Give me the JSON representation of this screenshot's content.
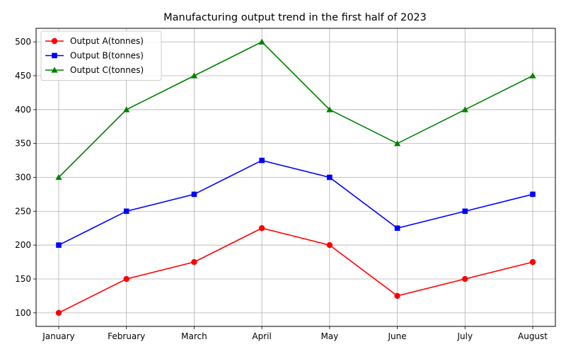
{
  "chart_data": {
    "type": "line",
    "title": "Manufacturing output trend in the first half of 2023",
    "xlabel": "",
    "ylabel": "",
    "categories": [
      "January",
      "February",
      "March",
      "April",
      "May",
      "June",
      "July",
      "August"
    ],
    "ylim": [
      80,
      520
    ],
    "yticks": [
      100,
      150,
      200,
      250,
      300,
      350,
      400,
      450,
      500
    ],
    "grid": true,
    "legend_position": "top-left",
    "series": [
      {
        "name": "Output A(tonnes)",
        "color": "#ff0000",
        "marker": "circle",
        "values": [
          100,
          150,
          175,
          225,
          200,
          125,
          150,
          175
        ]
      },
      {
        "name": "Output B(tonnes)",
        "color": "#0000ff",
        "marker": "square",
        "values": [
          200,
          250,
          275,
          325,
          300,
          225,
          250,
          275
        ]
      },
      {
        "name": "Output C(tonnes)",
        "color": "#008000",
        "marker": "triangle",
        "values": [
          300,
          400,
          450,
          500,
          400,
          350,
          400,
          450
        ]
      }
    ]
  }
}
